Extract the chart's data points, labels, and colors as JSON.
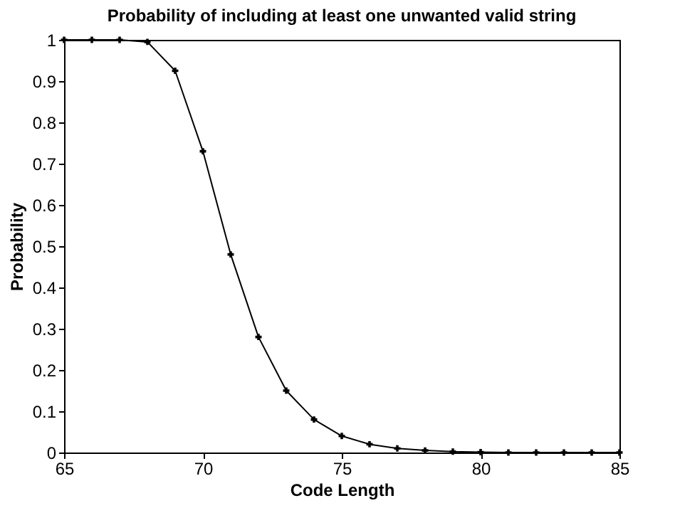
{
  "chart_data": {
    "type": "line",
    "title": "Probability of including at least one unwanted valid string",
    "xlabel": "Code Length",
    "ylabel": "Probability",
    "x": [
      65,
      66,
      67,
      68,
      69,
      70,
      71,
      72,
      73,
      74,
      75,
      76,
      77,
      78,
      79,
      80,
      81,
      82,
      83,
      84,
      85
    ],
    "series": [
      {
        "color": "#000000",
        "values": [
          1,
          1,
          1,
          0.995,
          0.925,
          0.73,
          0.48,
          0.28,
          0.15,
          0.08,
          0.04,
          0.02,
          0.01,
          0.005,
          0.002,
          0.001,
          0,
          0,
          0,
          0,
          0
        ]
      }
    ],
    "xlim": [
      65,
      85
    ],
    "xticks": [
      65,
      70,
      75,
      80,
      85
    ],
    "ylim": [
      0,
      1
    ],
    "yticks": [
      0,
      0.1,
      0.2,
      0.3,
      0.4,
      0.5,
      0.6,
      0.7,
      0.8,
      0.9,
      1
    ],
    "marker": "cross",
    "line_style": "solid",
    "grid": false,
    "legend": false
  }
}
